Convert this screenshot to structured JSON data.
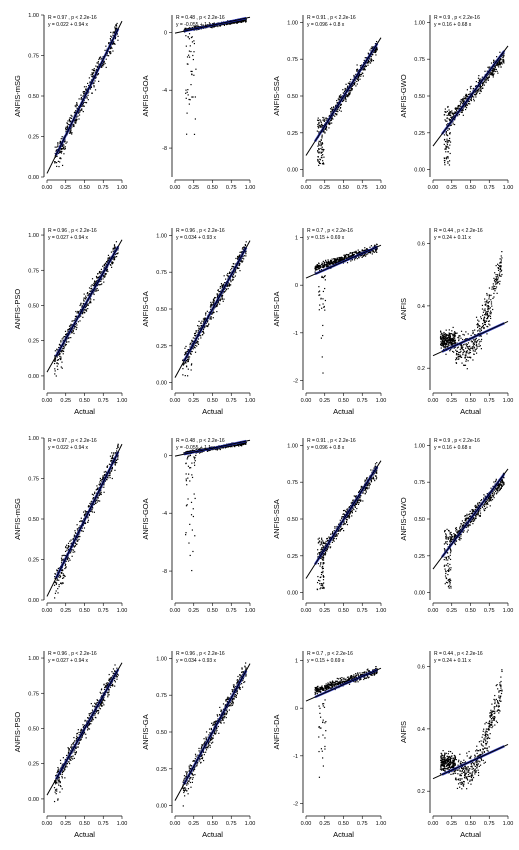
{
  "figure": {
    "xlabel": "Actual",
    "panels_per_row": 4,
    "rows": 4
  },
  "colors": {
    "points": "#000000",
    "fit_line": "#000000",
    "smooth_band": "#1f2bb8"
  },
  "chart_data": [
    {
      "id": "r1c1",
      "type": "scatter",
      "ylabel": "ANFIS-mSG",
      "stat": "R = 0.97 , p < 2.2e-16",
      "eq": "y = 0.022 + 0.94 x",
      "xlim": [
        0,
        1
      ],
      "ylim": [
        0,
        1
      ],
      "xticks": [
        "0.00",
        "0.25",
        "0.50",
        "0.75",
        "1.00"
      ],
      "yticks": [
        {
          "v": 0,
          "t": "0.00"
        },
        {
          "v": 0.25,
          "t": "0.25"
        },
        {
          "v": 0.5,
          "t": "0.50"
        },
        {
          "v": 0.75,
          "t": "0.75"
        },
        {
          "v": 1,
          "t": "1.00"
        }
      ],
      "fit": {
        "intercept": 0.022,
        "slope": 0.94
      },
      "show_xlabel": false
    },
    {
      "id": "r1c2",
      "type": "scatter",
      "ylabel": "ANFIS-GOA",
      "stat": "R = 0.48 , p < 2.2e-16",
      "eq": "y = -0.055 + 1.1 x",
      "xlim": [
        0,
        1
      ],
      "ylim": [
        -10,
        1.2
      ],
      "xticks": [
        "0.00",
        "0.25",
        "0.50",
        "0.75",
        "1.00"
      ],
      "yticks": [
        {
          "v": 0,
          "t": "0"
        },
        {
          "v": -4,
          "t": "-4"
        },
        {
          "v": -8,
          "t": "-8"
        }
      ],
      "fit": {
        "intercept": -0.055,
        "slope": 1.1
      },
      "show_xlabel": false
    },
    {
      "id": "r1c3",
      "type": "scatter",
      "ylabel": "ANFIS-SSA",
      "stat": "R = 0.91 , p < 2.2e-16",
      "eq": "y = 0.096 + 0.8 x",
      "xlim": [
        0,
        1
      ],
      "ylim": [
        -0.05,
        1.05
      ],
      "xticks": [
        "0.00",
        "0.25",
        "0.50",
        "0.75",
        "1.00"
      ],
      "yticks": [
        {
          "v": 0,
          "t": "0.00"
        },
        {
          "v": 0.25,
          "t": "0.25"
        },
        {
          "v": 0.5,
          "t": "0.50"
        },
        {
          "v": 0.75,
          "t": "0.75"
        },
        {
          "v": 1,
          "t": "1.00"
        }
      ],
      "fit": {
        "intercept": 0.096,
        "slope": 0.8
      },
      "show_xlabel": false
    },
    {
      "id": "r1c4",
      "type": "scatter",
      "ylabel": "ANFIS-GWO",
      "stat": "R = 0.9 , p < 2.2e-16",
      "eq": "y = 0.16 + 0.68 x",
      "xlim": [
        0,
        1
      ],
      "ylim": [
        -0.05,
        1.05
      ],
      "xticks": [
        "0.00",
        "0.25",
        "0.50",
        "0.75",
        "1.00"
      ],
      "yticks": [
        {
          "v": 0,
          "t": "0.00"
        },
        {
          "v": 0.25,
          "t": "0.25"
        },
        {
          "v": 0.5,
          "t": "0.50"
        },
        {
          "v": 0.75,
          "t": "0.75"
        },
        {
          "v": 1,
          "t": "1.00"
        }
      ],
      "fit": {
        "intercept": 0.16,
        "slope": 0.68
      },
      "show_xlabel": false
    },
    {
      "id": "r2c1",
      "type": "scatter",
      "ylabel": "ANFIS-PSO",
      "stat": "R = 0.96 , p < 2.2e-16",
      "eq": "y = 0.027 + 0.94 x",
      "xlim": [
        0,
        1
      ],
      "ylim": [
        -0.1,
        1.05
      ],
      "xticks": [
        "0.00",
        "0.25",
        "0.50",
        "0.75",
        "1.00"
      ],
      "yticks": [
        {
          "v": 0,
          "t": "0.00"
        },
        {
          "v": 0.25,
          "t": "0.25"
        },
        {
          "v": 0.5,
          "t": "0.50"
        },
        {
          "v": 0.75,
          "t": "0.75"
        },
        {
          "v": 1,
          "t": "1.00"
        }
      ],
      "fit": {
        "intercept": 0.027,
        "slope": 0.94
      },
      "show_xlabel": true
    },
    {
      "id": "r2c2",
      "type": "scatter",
      "ylabel": "ANFIS-GA",
      "stat": "R = 0.96 , p < 2.2e-16",
      "eq": "y = 0.034 + 0.93 x",
      "xlim": [
        0,
        1
      ],
      "ylim": [
        -0.05,
        1.05
      ],
      "xticks": [
        "0.00",
        "0.25",
        "0.50",
        "0.75",
        "1.00"
      ],
      "yticks": [
        {
          "v": 0,
          "t": "0.00"
        },
        {
          "v": 0.25,
          "t": "0.25"
        },
        {
          "v": 0.5,
          "t": "0.50"
        },
        {
          "v": 0.75,
          "t": "0.75"
        },
        {
          "v": 1,
          "t": "1.00"
        }
      ],
      "fit": {
        "intercept": 0.034,
        "slope": 0.93
      },
      "show_xlabel": true
    },
    {
      "id": "r2c3",
      "type": "scatter",
      "ylabel": "ANFIS-DA",
      "stat": "R = 0.7 , p < 2.2e-16",
      "eq": "y = 0.15 + 0.69 x",
      "xlim": [
        0,
        1
      ],
      "ylim": [
        -2.2,
        1.2
      ],
      "xticks": [
        "0.00",
        "0.25",
        "0.50",
        "0.75",
        "1.00"
      ],
      "yticks": [
        {
          "v": 1,
          "t": "1"
        },
        {
          "v": 0,
          "t": "0"
        },
        {
          "v": -1,
          "t": "-1"
        },
        {
          "v": -2,
          "t": "-2"
        }
      ],
      "fit": {
        "intercept": 0.15,
        "slope": 0.69
      },
      "show_xlabel": true
    },
    {
      "id": "r2c4",
      "type": "scatter",
      "ylabel": "ANFIS",
      "stat": "R = 0.44 , p < 2.2e-16",
      "eq": "y = 0.24 + 0.11 x",
      "xlim": [
        0,
        1
      ],
      "ylim": [
        0.13,
        0.65
      ],
      "xticks": [
        "0.00",
        "0.25",
        "0.50",
        "0.75",
        "1.00"
      ],
      "yticks": [
        {
          "v": 0.2,
          "t": "0.2"
        },
        {
          "v": 0.4,
          "t": "0.4"
        },
        {
          "v": 0.6,
          "t": "0.6"
        }
      ],
      "fit": {
        "intercept": 0.24,
        "slope": 0.11
      },
      "show_xlabel": true
    },
    {
      "id": "r3c1",
      "type": "scatter",
      "ylabel": "ANFIS-mSG",
      "stat": "R = 0.97 , p < 2.2e-16",
      "eq": "y = 0.022 + 0.94 x",
      "xlim": [
        0,
        1
      ],
      "ylim": [
        0,
        1
      ],
      "xticks": [
        "0.00",
        "0.25",
        "0.50",
        "0.75",
        "1.00"
      ],
      "yticks": [
        {
          "v": 0,
          "t": "0.00"
        },
        {
          "v": 0.25,
          "t": "0.25"
        },
        {
          "v": 0.5,
          "t": "0.50"
        },
        {
          "v": 0.75,
          "t": "0.75"
        },
        {
          "v": 1,
          "t": "1.00"
        }
      ],
      "fit": {
        "intercept": 0.022,
        "slope": 0.94
      },
      "show_xlabel": false
    },
    {
      "id": "r3c2",
      "type": "scatter",
      "ylabel": "ANFIS-GOA",
      "stat": "R = 0.48 , p < 2.2e-16",
      "eq": "y = -0.055 + 1.1 x",
      "xlim": [
        0,
        1
      ],
      "ylim": [
        -10,
        1.2
      ],
      "xticks": [
        "0.00",
        "0.25",
        "0.50",
        "0.75",
        "1.00"
      ],
      "yticks": [
        {
          "v": 0,
          "t": "0"
        },
        {
          "v": -4,
          "t": "-4"
        },
        {
          "v": -8,
          "t": "-8"
        }
      ],
      "fit": {
        "intercept": -0.055,
        "slope": 1.1
      },
      "show_xlabel": false
    },
    {
      "id": "r3c3",
      "type": "scatter",
      "ylabel": "ANFIS-SSA",
      "stat": "R = 0.91 , p < 2.2e-16",
      "eq": "y = 0.096 + 0.8 x",
      "xlim": [
        0,
        1
      ],
      "ylim": [
        -0.05,
        1.05
      ],
      "xticks": [
        "0.00",
        "0.25",
        "0.50",
        "0.75",
        "1.00"
      ],
      "yticks": [
        {
          "v": 0,
          "t": "0.00"
        },
        {
          "v": 0.25,
          "t": "0.25"
        },
        {
          "v": 0.5,
          "t": "0.50"
        },
        {
          "v": 0.75,
          "t": "0.75"
        },
        {
          "v": 1,
          "t": "1.00"
        }
      ],
      "fit": {
        "intercept": 0.096,
        "slope": 0.8
      },
      "show_xlabel": false
    },
    {
      "id": "r3c4",
      "type": "scatter",
      "ylabel": "ANFIS-GWO",
      "stat": "R = 0.9 , p < 2.2e-16",
      "eq": "y = 0.16 + 0.68 x",
      "xlim": [
        0,
        1
      ],
      "ylim": [
        -0.05,
        1.05
      ],
      "xticks": [
        "0.00",
        "0.25",
        "0.50",
        "0.75",
        "1.00"
      ],
      "yticks": [
        {
          "v": 0,
          "t": "0.00"
        },
        {
          "v": 0.25,
          "t": "0.25"
        },
        {
          "v": 0.5,
          "t": "0.50"
        },
        {
          "v": 0.75,
          "t": "0.75"
        },
        {
          "v": 1,
          "t": "1.00"
        }
      ],
      "fit": {
        "intercept": 0.16,
        "slope": 0.68
      },
      "show_xlabel": false
    },
    {
      "id": "r4c1",
      "type": "scatter",
      "ylabel": "ANFIS-PSO",
      "stat": "R = 0.96 , p < 2.2e-16",
      "eq": "y = 0.027 + 0.94 x",
      "xlim": [
        0,
        1
      ],
      "ylim": [
        -0.1,
        1.05
      ],
      "xticks": [
        "0.00",
        "0.25",
        "0.50",
        "0.75",
        "1.00"
      ],
      "yticks": [
        {
          "v": 0,
          "t": "0.00"
        },
        {
          "v": 0.25,
          "t": "0.25"
        },
        {
          "v": 0.5,
          "t": "0.50"
        },
        {
          "v": 0.75,
          "t": "0.75"
        },
        {
          "v": 1,
          "t": "1.00"
        }
      ],
      "fit": {
        "intercept": 0.027,
        "slope": 0.94
      },
      "show_xlabel": true
    },
    {
      "id": "r4c2",
      "type": "scatter",
      "ylabel": "ANFIS-GA",
      "stat": "R = 0.96 , p < 2.2e-16",
      "eq": "y = 0.034 + 0.93 x",
      "xlim": [
        0,
        1
      ],
      "ylim": [
        -0.05,
        1.05
      ],
      "xticks": [
        "0.00",
        "0.25",
        "0.50",
        "0.75",
        "1.00"
      ],
      "yticks": [
        {
          "v": 0,
          "t": "0.00"
        },
        {
          "v": 0.25,
          "t": "0.25"
        },
        {
          "v": 0.5,
          "t": "0.50"
        },
        {
          "v": 0.75,
          "t": "0.75"
        },
        {
          "v": 1,
          "t": "1.00"
        }
      ],
      "fit": {
        "intercept": 0.034,
        "slope": 0.93
      },
      "show_xlabel": true
    },
    {
      "id": "r4c3",
      "type": "scatter",
      "ylabel": "ANFIS-DA",
      "stat": "R = 0.7 , p < 2.2e-16",
      "eq": "y = 0.15 + 0.69 x",
      "xlim": [
        0,
        1
      ],
      "ylim": [
        -2.2,
        1.2
      ],
      "xticks": [
        "0.00",
        "0.25",
        "0.50",
        "0.75",
        "1.00"
      ],
      "yticks": [
        {
          "v": 1,
          "t": "1"
        },
        {
          "v": 0,
          "t": "0"
        },
        {
          "v": -1,
          "t": "-1"
        },
        {
          "v": -2,
          "t": "-2"
        }
      ],
      "fit": {
        "intercept": 0.15,
        "slope": 0.69
      },
      "show_xlabel": true
    },
    {
      "id": "r4c4",
      "type": "scatter",
      "ylabel": "ANFIS",
      "stat": "R = 0.44 , p < 2.2e-16",
      "eq": "y = 0.24 + 0.11 x",
      "xlim": [
        0,
        1
      ],
      "ylim": [
        0.13,
        0.65
      ],
      "xticks": [
        "0.00",
        "0.25",
        "0.50",
        "0.75",
        "1.00"
      ],
      "yticks": [
        {
          "v": 0.2,
          "t": "0.2"
        },
        {
          "v": 0.4,
          "t": "0.4"
        },
        {
          "v": 0.6,
          "t": "0.6"
        }
      ],
      "fit": {
        "intercept": 0.24,
        "slope": 0.11
      },
      "show_xlabel": true
    }
  ]
}
